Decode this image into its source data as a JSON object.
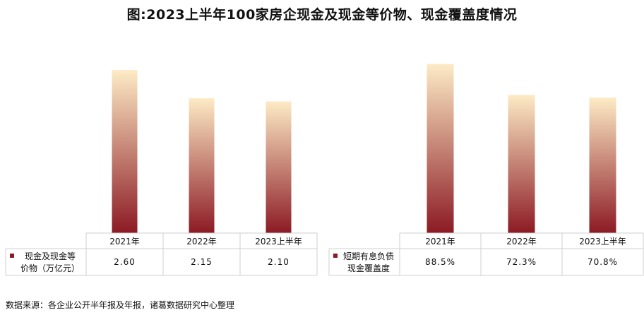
{
  "title": "图:2023上半年100家房企现金及现金等价物、现金覆盖度情况",
  "source": "数据来源：各企业公开半年报及年报，诸葛数据研究中心整理",
  "colors": {
    "bar_top": "#fdebc5",
    "bar_bottom": "#8c1a24",
    "grid": "#cfcfcf",
    "legend_swatch": "#8c1a24"
  },
  "chart_data": [
    {
      "type": "bar",
      "categories": [
        "2021年",
        "2022年",
        "2023上半年"
      ],
      "series": [
        {
          "name": "现金及现金等价物（万亿元）",
          "values": [
            2.6,
            2.15,
            2.1
          ]
        }
      ],
      "value_labels": [
        "2.60",
        "2.15",
        "2.10"
      ],
      "legend_lines": [
        "现金及现金等",
        "价物（万亿元）"
      ],
      "ylim": [
        0,
        2.85
      ]
    },
    {
      "type": "bar",
      "categories": [
        "2021年",
        "2022年",
        "2023上半年"
      ],
      "series": [
        {
          "name": "短期有息负债现金覆盖度",
          "values": [
            88.5,
            72.3,
            70.8
          ]
        }
      ],
      "value_labels": [
        "88.5%",
        "72.3%",
        "70.8%"
      ],
      "legend_lines": [
        "短期有息负债",
        "现金覆盖度"
      ],
      "ylim": [
        0,
        93.5
      ]
    }
  ]
}
